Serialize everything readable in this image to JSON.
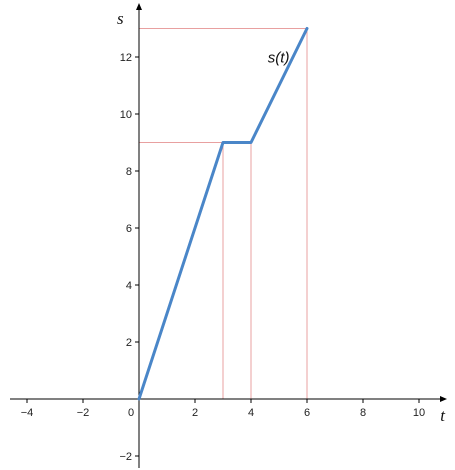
{
  "chart_data": {
    "type": "line",
    "x_axis_label": "t",
    "y_axis_label": "s",
    "xlim": [
      -4.5,
      11.0
    ],
    "ylim": [
      -2.5,
      13.8
    ],
    "x_ticks": [
      -4,
      -2,
      0,
      2,
      4,
      6,
      8,
      10
    ],
    "y_ticks": [
      -2,
      2,
      4,
      6,
      8,
      10,
      12
    ],
    "x_tick_labels": [
      "−4",
      "−2",
      "0",
      "2",
      "4",
      "6",
      "8",
      "10"
    ],
    "y_tick_labels": [
      "−2",
      "2",
      "4",
      "6",
      "8",
      "10",
      "12"
    ],
    "series": [
      {
        "name": "s(t)",
        "x": [
          0,
          3,
          4,
          6
        ],
        "y": [
          0,
          9,
          9,
          13
        ],
        "color": "#4a86c8"
      }
    ],
    "helper_lines": {
      "vertical_at_x": [
        3,
        4,
        6
      ],
      "horizontal_at_y": [
        9,
        13
      ],
      "color": "#e8a0a0"
    },
    "axis_color": "#000000",
    "grid": false
  }
}
